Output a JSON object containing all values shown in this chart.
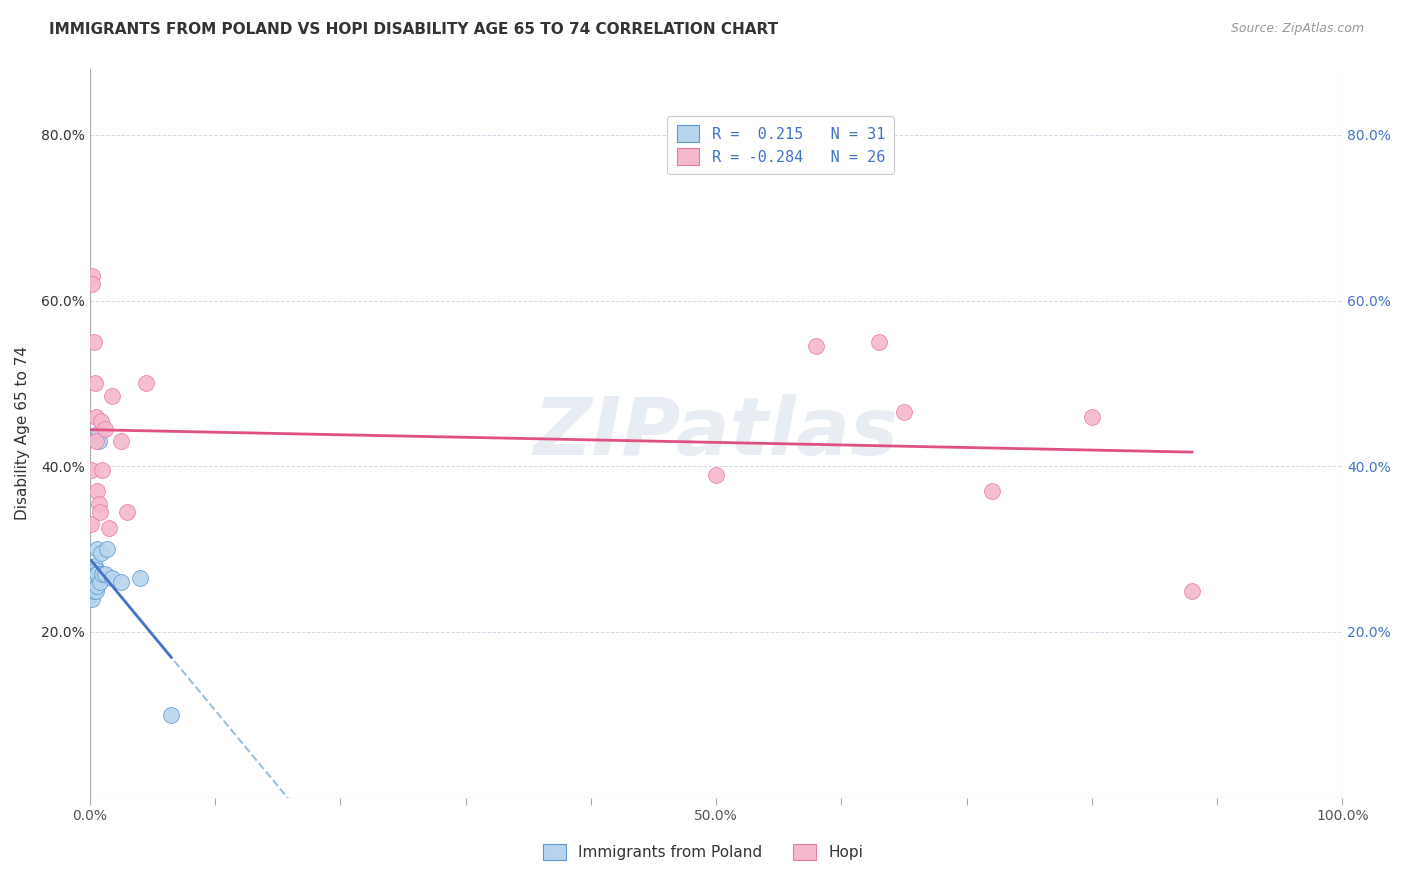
{
  "title": "IMMIGRANTS FROM POLAND VS HOPI DISABILITY AGE 65 TO 74 CORRELATION CHART",
  "source": "Source: ZipAtlas.com",
  "ylabel": "Disability Age 65 to 74",
  "xlim": [
    0,
    1.0
  ],
  "ylim": [
    0,
    0.88
  ],
  "xticks": [
    0.0,
    0.1,
    0.2,
    0.3,
    0.4,
    0.5,
    0.6,
    0.7,
    0.8,
    0.9,
    1.0
  ],
  "xticklabels": [
    "0.0%",
    "",
    "",
    "",
    "",
    "50.0%",
    "",
    "",
    "",
    "",
    "100.0%"
  ],
  "yticks_left": [
    0.2,
    0.4,
    0.6,
    0.8
  ],
  "yticklabels_left": [
    "20.0%",
    "40.0%",
    "60.0%",
    "80.0%"
  ],
  "yticks_right": [
    0.2,
    0.4,
    0.6,
    0.8
  ],
  "yticklabels_right": [
    "20.0%",
    "40.0%",
    "60.0%",
    "80.0%"
  ],
  "legend_r_blue": " 0.215",
  "legend_n_blue": "31",
  "legend_r_pink": "-0.284",
  "legend_n_pink": "26",
  "blue_fill": "#b8d4ed",
  "pink_fill": "#f5b8cc",
  "blue_edge": "#5b9bd5",
  "pink_edge": "#e87aaa",
  "blue_line_color": "#4472c4",
  "pink_line_color": "#e05080",
  "dashed_line_color": "#7fb3d3",
  "blue_scatter_x": [
    0.001,
    0.001,
    0.001,
    0.002,
    0.002,
    0.002,
    0.002,
    0.003,
    0.003,
    0.003,
    0.004,
    0.004,
    0.004,
    0.005,
    0.005,
    0.005,
    0.005,
    0.006,
    0.006,
    0.006,
    0.007,
    0.007,
    0.008,
    0.009,
    0.01,
    0.012,
    0.014,
    0.018,
    0.025,
    0.04,
    0.065
  ],
  "blue_scatter_y": [
    0.265,
    0.255,
    0.245,
    0.27,
    0.26,
    0.25,
    0.24,
    0.275,
    0.265,
    0.25,
    0.28,
    0.265,
    0.255,
    0.275,
    0.27,
    0.26,
    0.25,
    0.3,
    0.27,
    0.255,
    0.44,
    0.43,
    0.26,
    0.295,
    0.27,
    0.27,
    0.3,
    0.265,
    0.26,
    0.265,
    0.1
  ],
  "pink_scatter_x": [
    0.001,
    0.001,
    0.002,
    0.002,
    0.003,
    0.004,
    0.005,
    0.005,
    0.006,
    0.007,
    0.008,
    0.009,
    0.01,
    0.012,
    0.015,
    0.018,
    0.025,
    0.03,
    0.045,
    0.5,
    0.58,
    0.63,
    0.65,
    0.72,
    0.8,
    0.88
  ],
  "pink_scatter_y": [
    0.395,
    0.33,
    0.63,
    0.62,
    0.55,
    0.5,
    0.46,
    0.43,
    0.37,
    0.355,
    0.345,
    0.455,
    0.395,
    0.445,
    0.325,
    0.485,
    0.43,
    0.345,
    0.5,
    0.39,
    0.545,
    0.55,
    0.465,
    0.37,
    0.46,
    0.25
  ],
  "watermark": "ZIPatlas",
  "title_fontsize": 11,
  "source_fontsize": 9
}
